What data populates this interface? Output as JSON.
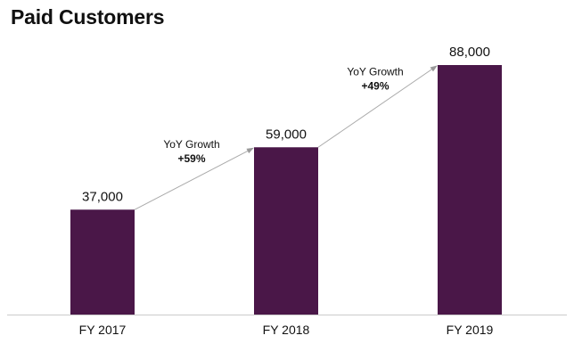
{
  "chart_data": {
    "type": "bar",
    "title": "Paid Customers",
    "categories": [
      "FY 2017",
      "FY 2018",
      "FY 2019"
    ],
    "values": [
      37000,
      59000,
      88000
    ],
    "data_labels": [
      "37,000",
      "59,000",
      "88,000"
    ],
    "ylim": [
      0,
      88000
    ],
    "grid": false,
    "bar_color": "#4a1748",
    "annotations": [
      {
        "from": "FY 2017",
        "to": "FY 2018",
        "label": "YoY Growth",
        "value": "+59%"
      },
      {
        "from": "FY 2018",
        "to": "FY 2019",
        "label": "YoY Growth",
        "value": "+49%"
      }
    ]
  }
}
